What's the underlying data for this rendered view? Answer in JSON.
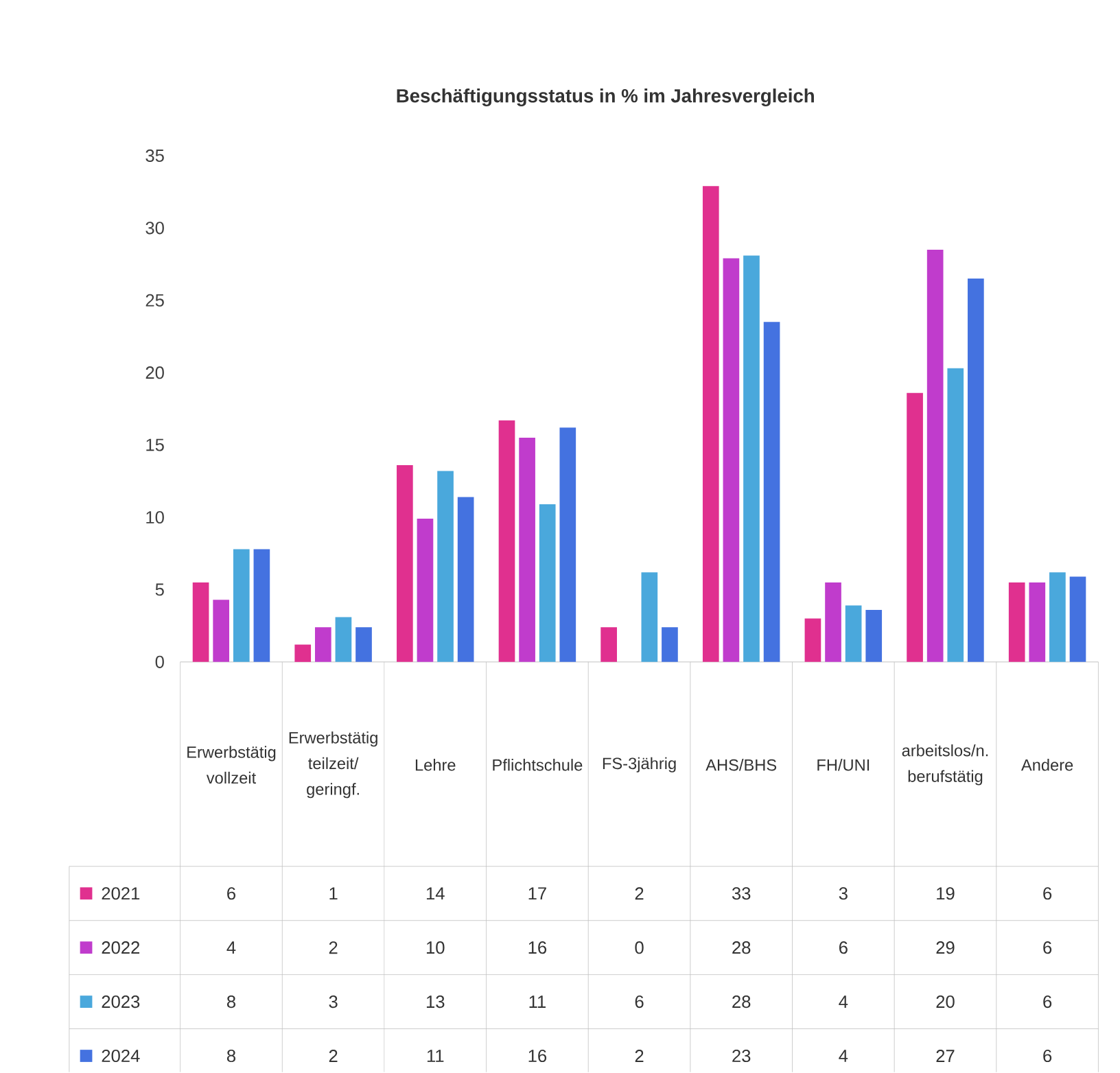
{
  "chart_data": {
    "type": "bar",
    "title": "Beschäftigungsstatus in % im Jahresvergleich",
    "categories": [
      "Erwerbstätig vollzeit",
      "Erwerbstätig teilzeit/geringf.",
      "Lehre",
      "Pflichtschule",
      "FS-3jährig",
      "AHS/BHS",
      "FH/UNI",
      "arbeitslos/n. berufstätig",
      "Andere"
    ],
    "series": [
      {
        "name": "2021",
        "color": "#e0308f",
        "values": [
          5.5,
          1.2,
          13.6,
          16.7,
          2.4,
          32.9,
          3.0,
          18.6,
          5.5
        ],
        "value_labels": [
          "6",
          "1",
          "14",
          "17",
          "2",
          "33",
          "3",
          "19",
          "6"
        ]
      },
      {
        "name": "2022",
        "color": "#c03ccc",
        "values": [
          4.3,
          2.4,
          9.9,
          15.5,
          0,
          27.9,
          5.5,
          28.5,
          5.5
        ],
        "value_labels": [
          "4",
          "2",
          "10",
          "16",
          "0",
          "28",
          "6",
          "29",
          "6"
        ]
      },
      {
        "name": "2023",
        "color": "#4aa8dc",
        "values": [
          7.8,
          3.1,
          13.2,
          10.9,
          6.2,
          28.1,
          3.9,
          20.3,
          6.2
        ],
        "value_labels": [
          "8",
          "3",
          "13",
          "11",
          "6",
          "28",
          "4",
          "20",
          "6"
        ]
      },
      {
        "name": "2024",
        "color": "#4472e0",
        "values": [
          7.8,
          2.4,
          11.4,
          16.2,
          2.4,
          23.5,
          3.6,
          26.5,
          5.9
        ],
        "value_labels": [
          "8",
          "2",
          "11",
          "16",
          "2",
          "23",
          "4",
          "27",
          "6"
        ]
      }
    ],
    "ylim": [
      0,
      35
    ],
    "yticks": [
      0,
      5,
      10,
      15,
      20,
      25,
      30,
      35
    ],
    "legend": "bottom"
  }
}
